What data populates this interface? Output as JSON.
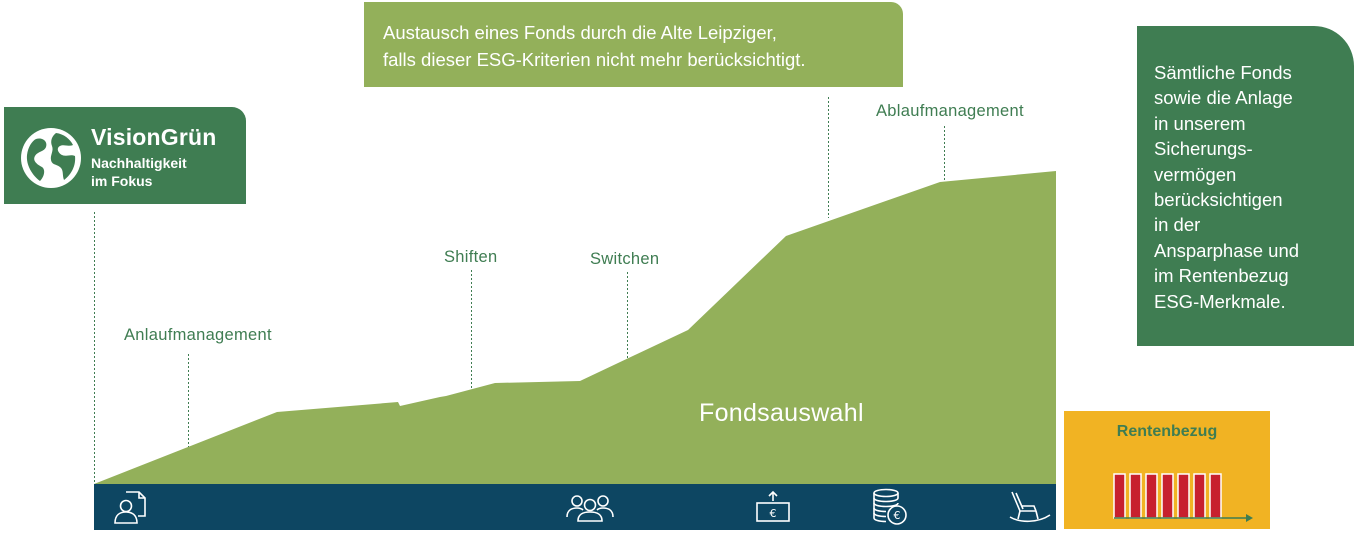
{
  "logo": {
    "brand": "VisionGrün",
    "tagline_line1": "Nachhaltigkeit",
    "tagline_line2": "im Fokus",
    "icon": "globe-icon"
  },
  "callout_top": {
    "line1": "Austausch eines Fonds durch die Alte Leipziger,",
    "line2": "falls dieser ESG-Kriterien nicht mehr berücksichtigt."
  },
  "callout_right": {
    "lines": [
      "Sämtliche Fonds",
      "sowie die Anlage",
      "in unserem",
      "Sicherungs-",
      "vermögen",
      "berücksichtigen",
      "in der",
      "Ansparphase und",
      "im Rentenbezug",
      "ESG-Merkmale."
    ]
  },
  "labels": {
    "anlaufmanagement": "Anlaufmanagement",
    "shiften": "Shiften",
    "switchen": "Switchen",
    "ablaufmanagement": "Ablaufmanagement",
    "fondsauswahl": "Fondsauswahl"
  },
  "rente": {
    "title": "Rentenbezug",
    "bars": 7
  },
  "colors": {
    "dark_green": "#3f7d52",
    "light_green": "#93b05a",
    "navy": "#0d4662",
    "yellow": "#f1b323",
    "red": "#c7202e"
  },
  "bar_icons": [
    "person-document-icon",
    "people-group-icon",
    "euro-banknote-icon",
    "coin-stack-icon",
    "rocking-chair-icon"
  ]
}
